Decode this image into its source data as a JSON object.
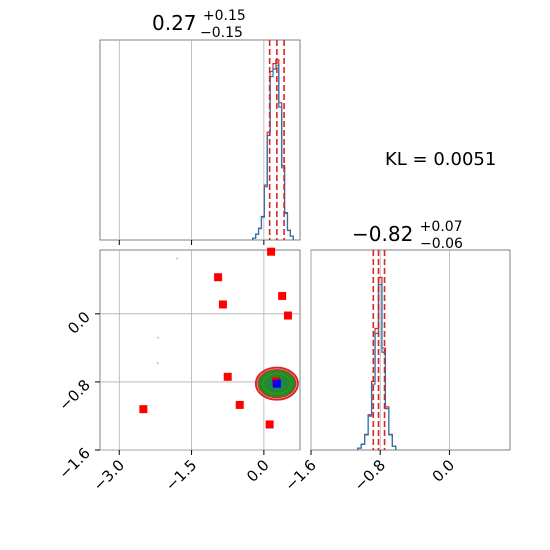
{
  "chart_data": [
    {
      "type": "histogram",
      "panel": "top-left",
      "title": {
        "median": "0.27",
        "plus": "+0.15",
        "minus": "−0.15"
      },
      "xlim": [
        -3.4,
        0.75
      ],
      "median": 0.27,
      "lower": 0.12,
      "upper": 0.42,
      "bins": [
        {
          "x": -0.2,
          "v": 0.01
        },
        {
          "x": -0.14,
          "v": 0.03
        },
        {
          "x": -0.08,
          "v": 0.06
        },
        {
          "x": -0.02,
          "v": 0.12
        },
        {
          "x": 0.04,
          "v": 0.28
        },
        {
          "x": 0.1,
          "v": 0.55
        },
        {
          "x": 0.16,
          "v": 0.86
        },
        {
          "x": 0.22,
          "v": 0.9
        },
        {
          "x": 0.28,
          "v": 0.92
        },
        {
          "x": 0.34,
          "v": 0.7
        },
        {
          "x": 0.4,
          "v": 0.38
        },
        {
          "x": 0.46,
          "v": 0.14
        },
        {
          "x": 0.52,
          "v": 0.05
        },
        {
          "x": 0.58,
          "v": 0.02
        }
      ],
      "series": [
        {
          "name": "",
          "color": "#1f77b4"
        },
        {
          "name": "",
          "color": "#d62728"
        }
      ],
      "grid": true
    },
    {
      "type": "histogram",
      "panel": "bottom-right",
      "title": {
        "median": "−0.82",
        "plus": "+0.07",
        "minus": "−0.06"
      },
      "xlim": [
        -1.6,
        0.7
      ],
      "xticks": [
        "−1.6",
        "−0.8",
        "0.0"
      ],
      "median": -0.82,
      "lower": -0.88,
      "upper": -0.75,
      "bins": [
        {
          "x": -1.04,
          "v": 0.01
        },
        {
          "x": -1.0,
          "v": 0.03
        },
        {
          "x": -0.96,
          "v": 0.08
        },
        {
          "x": -0.92,
          "v": 0.18
        },
        {
          "x": -0.88,
          "v": 0.35
        },
        {
          "x": -0.84,
          "v": 0.62
        },
        {
          "x": -0.8,
          "v": 0.88
        },
        {
          "x": -0.76,
          "v": 0.52
        },
        {
          "x": -0.72,
          "v": 0.22
        },
        {
          "x": -0.68,
          "v": 0.08
        },
        {
          "x": -0.64,
          "v": 0.02
        }
      ],
      "grid": true
    },
    {
      "type": "scatter",
      "panel": "bottom-left",
      "xlim": [
        -3.4,
        0.75
      ],
      "ylim": [
        -1.6,
        0.75
      ],
      "xticks": [
        "−3.0",
        "−1.5",
        "0.0"
      ],
      "yticks": [
        "−1.6",
        "−0.8",
        "0.0"
      ],
      "points": [
        {
          "x": 0.15,
          "y": 0.73
        },
        {
          "x": -0.95,
          "y": 0.43
        },
        {
          "x": -0.85,
          "y": 0.11
        },
        {
          "x": 0.38,
          "y": 0.21
        },
        {
          "x": 0.5,
          "y": -0.02
        },
        {
          "x": -0.75,
          "y": -0.74
        },
        {
          "x": -2.5,
          "y": -1.12
        },
        {
          "x": -0.5,
          "y": -1.07
        },
        {
          "x": 0.12,
          "y": -1.3
        },
        {
          "x": 0.25,
          "y": -0.79
        }
      ],
      "faint_points": [
        {
          "x": -1.8,
          "y": 0.65
        },
        {
          "x": -2.2,
          "y": -0.28
        },
        {
          "x": -2.2,
          "y": -0.58
        }
      ],
      "contour_center": {
        "x": 0.27,
        "y": -0.82
      },
      "colors": {
        "points": "#ff0000",
        "contour": "#228b22",
        "center": "#0000ff",
        "outline": "#d62728"
      },
      "grid": true
    }
  ],
  "annotation": {
    "kl": "KL = 0.0051"
  }
}
